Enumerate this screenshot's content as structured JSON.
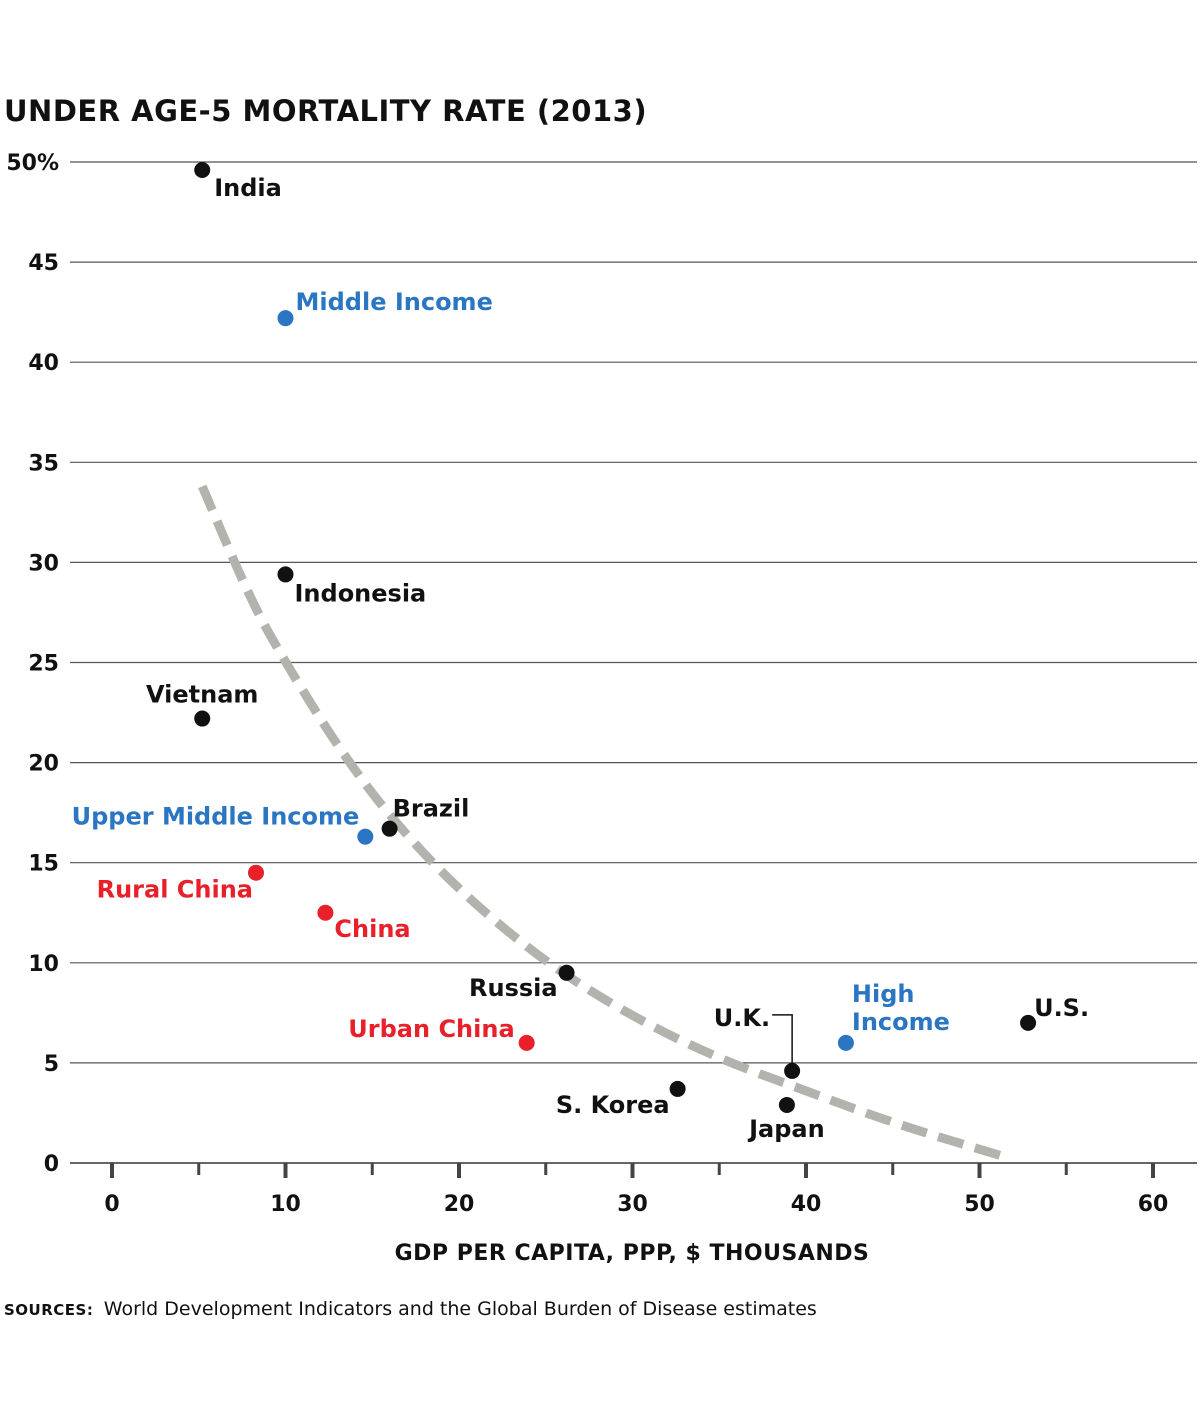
{
  "colors": {
    "country": "#111111",
    "income_group": "#2a76c2",
    "china": "#e8202a",
    "trend": "#b3b3ae",
    "grid": "#555555"
  },
  "chart_data": {
    "type": "scatter",
    "title": "UNDER AGE-5 MORTALITY RATE (2013)",
    "xlabel": "GDP PER CAPITA, PPP, $ THOUSANDS",
    "ylabel": "",
    "xlim": [
      0,
      60
    ],
    "ylim": [
      0,
      50
    ],
    "x_ticks": [
      "0",
      "10",
      "20",
      "30",
      "40",
      "50",
      "60"
    ],
    "y_ticks": [
      "50%",
      "45",
      "40",
      "35",
      "30",
      "25",
      "20",
      "15",
      "10",
      "5",
      "0"
    ],
    "grid": "horizontal",
    "points": [
      {
        "label": "India",
        "x": 5.2,
        "y": 49.6,
        "group": "country"
      },
      {
        "label": "Middle Income",
        "x": 10.0,
        "y": 42.2,
        "group": "income_group"
      },
      {
        "label": "Indonesia",
        "x": 10.0,
        "y": 29.4,
        "group": "country"
      },
      {
        "label": "Vietnam",
        "x": 5.2,
        "y": 22.2,
        "group": "country"
      },
      {
        "label": "Upper Middle Income",
        "x": 14.6,
        "y": 16.3,
        "group": "income_group"
      },
      {
        "label": "Brazil",
        "x": 16.0,
        "y": 16.7,
        "group": "country"
      },
      {
        "label": "Rural China",
        "x": 8.3,
        "y": 14.5,
        "group": "china"
      },
      {
        "label": "China",
        "x": 12.3,
        "y": 12.5,
        "group": "china"
      },
      {
        "label": "Russia",
        "x": 26.2,
        "y": 9.5,
        "group": "country"
      },
      {
        "label": "Urban China",
        "x": 23.9,
        "y": 6.0,
        "group": "china"
      },
      {
        "label": "S. Korea",
        "x": 32.6,
        "y": 3.7,
        "group": "country"
      },
      {
        "label": "Japan",
        "x": 38.9,
        "y": 2.9,
        "group": "country"
      },
      {
        "label": "U.K.",
        "x": 39.2,
        "y": 4.6,
        "group": "country"
      },
      {
        "label": "High Income",
        "x": 42.3,
        "y": 6.0,
        "group": "income_group"
      },
      {
        "label": "U.S.",
        "x": 52.8,
        "y": 7.0,
        "group": "country"
      }
    ],
    "trend_line": {
      "style": "dashed",
      "x": [
        5.2,
        8,
        10,
        13,
        16,
        20,
        25,
        30,
        35,
        40,
        45,
        51.5
      ],
      "y": [
        33.8,
        28.1,
        25.0,
        20.8,
        17.3,
        13.6,
        10.0,
        7.3,
        5.2,
        3.6,
        2.0,
        0.3
      ]
    }
  },
  "source": {
    "key": "SOURCES:",
    "text": "World Development Indicators and the Global Burden of Disease estimates"
  }
}
